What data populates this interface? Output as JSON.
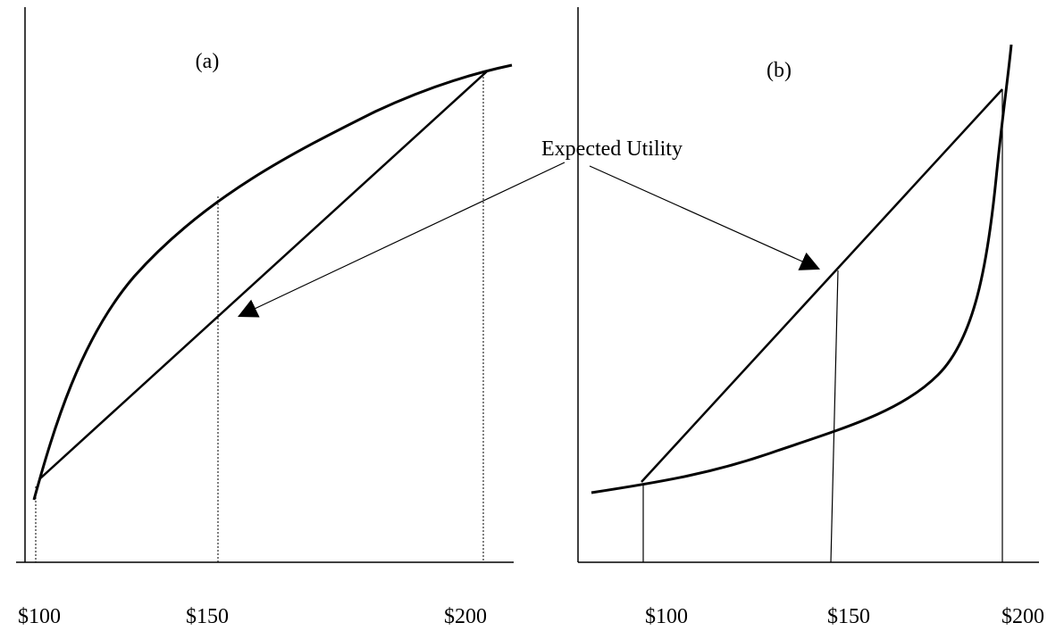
{
  "panels": [
    {
      "label": "(a)",
      "x_labels": [
        "$100",
        "$150",
        "$200"
      ]
    },
    {
      "label": "(b)",
      "x_labels": [
        "$100",
        "$150",
        "$200"
      ]
    }
  ],
  "annotation": "Expected Utility"
}
